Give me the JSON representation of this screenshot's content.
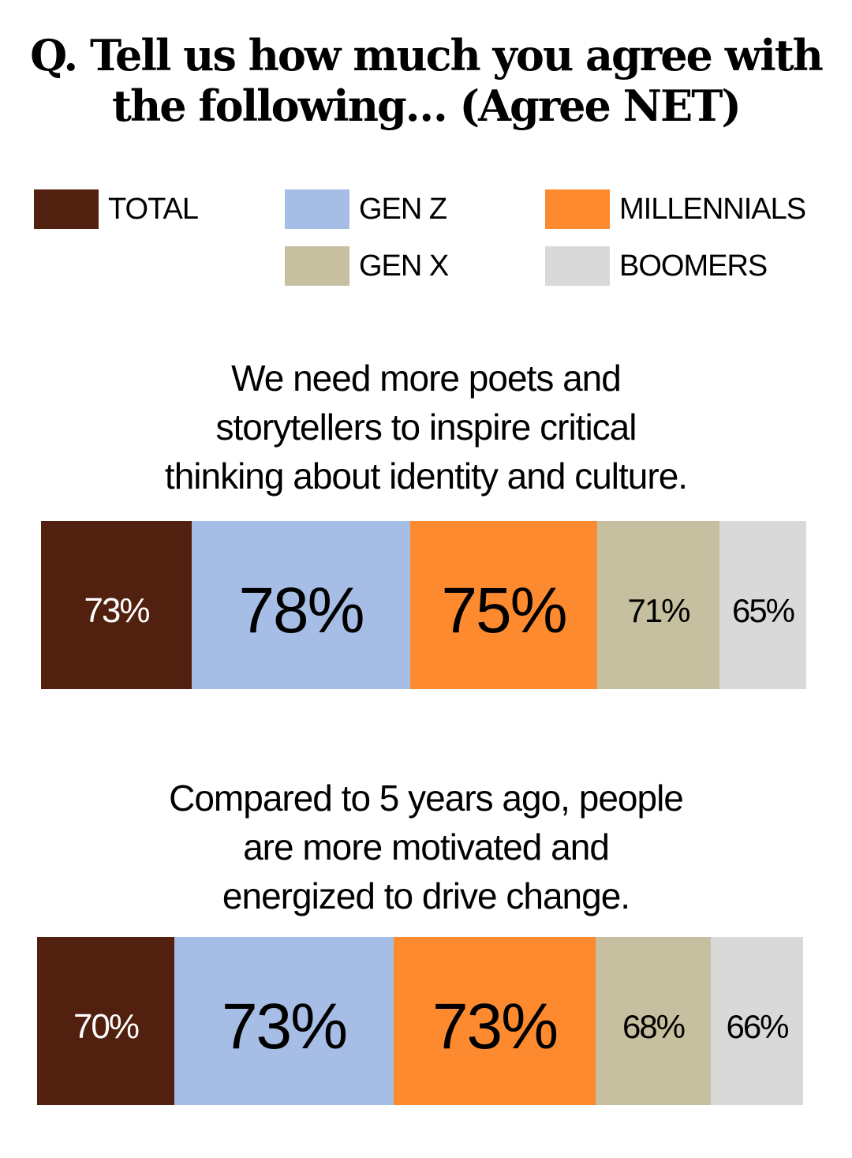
{
  "chart_data": {
    "type": "segments",
    "title": "Q. Tell us how much you agree with\nthe following… (Agree NET)",
    "categories": [
      "We need more poets and\nstorytellers to inspire critical\nthinking about identity and culture.",
      "Compared to 5 years ago, people\nare more motivated and\nenergized to drive change."
    ],
    "series": [
      {
        "name": "TOTAL",
        "color": "#52200e",
        "values": [
          73,
          70
        ],
        "value_labels": [
          "73%",
          "70%"
        ]
      },
      {
        "name": "GEN Z",
        "color": "#a6bde6",
        "values": [
          78,
          73
        ],
        "value_labels": [
          "78%",
          "73%"
        ]
      },
      {
        "name": "MILLENNIALS",
        "color": "#fd8a2f",
        "values": [
          75,
          73
        ],
        "value_labels": [
          "75%",
          "73%"
        ]
      },
      {
        "name": "GEN X",
        "color": "#c7c0a0",
        "values": [
          71,
          68
        ],
        "value_labels": [
          "71%",
          "68%"
        ]
      },
      {
        "name": "BOOMERS",
        "color": "#d9d9d9",
        "values": [
          65,
          66
        ],
        "value_labels": [
          "65%",
          "66%"
        ]
      }
    ]
  }
}
